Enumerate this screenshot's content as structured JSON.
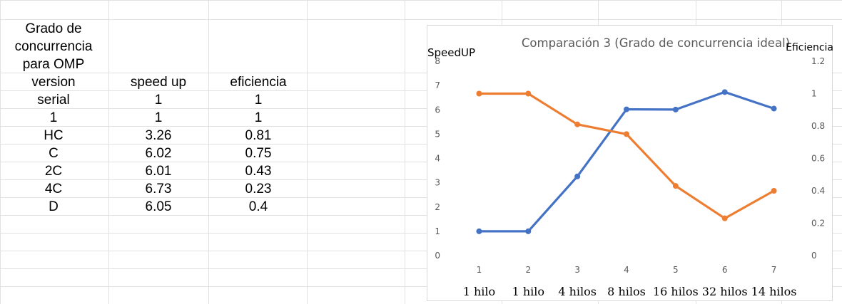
{
  "table": {
    "title": [
      "Grado de",
      "concurrencia",
      "para OMP"
    ],
    "headers": [
      "version",
      "speed up",
      "eficiencia"
    ],
    "rows": [
      [
        "serial",
        "1",
        "1"
      ],
      [
        "1",
        "1",
        "1"
      ],
      [
        "HC",
        "3.26",
        "0.81"
      ],
      [
        "C",
        "6.02",
        "0.75"
      ],
      [
        "2C",
        "6.01",
        "0.43"
      ],
      [
        "4C",
        "6.73",
        "0.23"
      ],
      [
        "D",
        "6.05",
        "0.4"
      ]
    ]
  },
  "chart_data": {
    "type": "line",
    "title": "Comparación 3 (Grado de concurrencia ideal)",
    "ylabel": "SpeedUP",
    "y2label": "Eficiencia",
    "x": [
      "1",
      "2",
      "3",
      "4",
      "5",
      "6",
      "7"
    ],
    "x_annotations": [
      "1 hilo",
      "1 hilo",
      "4 hilos",
      "8 hilos",
      "16 hilos",
      "32 hilos",
      "14 hilos"
    ],
    "ylim": [
      0,
      8
    ],
    "y_ticks": [
      "0",
      "1",
      "2",
      "3",
      "4",
      "5",
      "6",
      "7",
      "8"
    ],
    "y2lim": [
      0,
      1.2
    ],
    "y2_ticks": [
      "0",
      "0.2",
      "0.4",
      "0.6",
      "0.8",
      "1",
      "1.2"
    ],
    "grid": false,
    "legend": "none",
    "series": [
      {
        "axis": "left",
        "color": "#4472c4",
        "values": [
          1,
          1,
          3.26,
          6.02,
          6.01,
          6.73,
          6.05
        ]
      },
      {
        "axis": "right",
        "color": "#ed7d31",
        "values": [
          1,
          1,
          0.81,
          0.75,
          0.43,
          0.23,
          0.4
        ]
      }
    ]
  }
}
